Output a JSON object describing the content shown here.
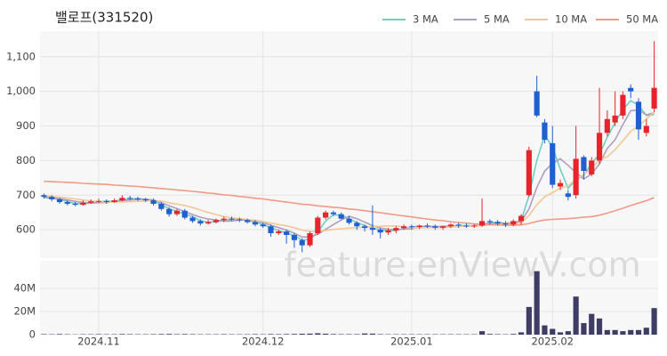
{
  "chart_data": {
    "type": "candlestick",
    "title": "밸로프(331520)",
    "watermark": "feature.enViewV.com",
    "up_color": "#e8232c",
    "down_color": "#1f5fd0",
    "grid": true,
    "legend": "top-right",
    "categories": [
      null,
      null,
      null,
      null,
      null,
      null,
      null,
      "2024.11",
      null,
      null,
      null,
      null,
      null,
      null,
      null,
      null,
      null,
      null,
      null,
      null,
      null,
      null,
      null,
      null,
      null,
      null,
      null,
      null,
      "2024.12",
      null,
      null,
      null,
      null,
      null,
      null,
      null,
      null,
      null,
      null,
      null,
      null,
      null,
      null,
      null,
      null,
      null,
      null,
      "2025.01",
      null,
      null,
      null,
      null,
      null,
      null,
      null,
      null,
      null,
      null,
      null,
      null,
      null,
      null,
      null,
      null,
      null,
      "2025.02",
      null,
      null,
      null,
      null,
      null,
      null,
      null,
      null,
      null,
      null,
      null,
      null,
      null
    ],
    "open": [
      700,
      695,
      688,
      680,
      675,
      672,
      678,
      682,
      683,
      680,
      685,
      692,
      690,
      688,
      685,
      675,
      660,
      645,
      655,
      635,
      625,
      618,
      622,
      628,
      632,
      630,
      628,
      622,
      615,
      610,
      590,
      595,
      585,
      570,
      555,
      590,
      635,
      650,
      645,
      632,
      620,
      610,
      605,
      600,
      592,
      598,
      605,
      610,
      608,
      612,
      610,
      606,
      610,
      615,
      612,
      610,
      612,
      625,
      622,
      618,
      615,
      625,
      700,
      1000,
      910,
      850,
      725,
      705,
      700,
      810,
      760,
      800,
      880,
      910,
      930,
      1010,
      970,
      880,
      950
    ],
    "high": [
      705,
      700,
      692,
      685,
      680,
      685,
      688,
      690,
      688,
      690,
      700,
      698,
      695,
      692,
      690,
      680,
      665,
      660,
      660,
      640,
      630,
      628,
      632,
      638,
      638,
      635,
      632,
      628,
      620,
      615,
      600,
      600,
      590,
      575,
      595,
      640,
      655,
      655,
      650,
      640,
      625,
      615,
      670,
      605,
      605,
      610,
      615,
      615,
      615,
      618,
      615,
      612,
      618,
      620,
      618,
      616,
      690,
      630,
      628,
      625,
      630,
      645,
      840,
      1045,
      920,
      900,
      745,
      715,
      900,
      815,
      810,
      1010,
      945,
      1000,
      1000,
      1020,
      980,
      920,
      1145
    ],
    "low": [
      690,
      682,
      675,
      670,
      668,
      670,
      675,
      678,
      675,
      678,
      682,
      685,
      683,
      680,
      670,
      655,
      638,
      640,
      630,
      620,
      612,
      615,
      618,
      622,
      625,
      622,
      618,
      610,
      605,
      580,
      585,
      560,
      548,
      535,
      550,
      585,
      630,
      640,
      630,
      615,
      600,
      595,
      585,
      575,
      585,
      590,
      600,
      600,
      602,
      605,
      600,
      600,
      605,
      605,
      605,
      605,
      608,
      615,
      612,
      608,
      610,
      615,
      695,
      925,
      850,
      720,
      715,
      685,
      690,
      745,
      755,
      790,
      870,
      900,
      920,
      980,
      860,
      870,
      940
    ],
    "close": [
      695,
      688,
      680,
      675,
      672,
      678,
      682,
      683,
      680,
      685,
      692,
      690,
      688,
      685,
      675,
      660,
      645,
      655,
      635,
      625,
      618,
      622,
      628,
      632,
      630,
      628,
      622,
      615,
      610,
      590,
      595,
      585,
      570,
      555,
      590,
      635,
      650,
      645,
      632,
      620,
      610,
      605,
      600,
      592,
      598,
      605,
      610,
      608,
      612,
      610,
      606,
      610,
      615,
      612,
      610,
      612,
      625,
      622,
      618,
      615,
      625,
      640,
      830,
      930,
      860,
      730,
      735,
      695,
      805,
      770,
      800,
      880,
      920,
      930,
      990,
      1000,
      890,
      900,
      1010
    ],
    "ylim": [
      518,
      1174
    ],
    "yticks": [
      600,
      700,
      800,
      900,
      {
        "value": 1000,
        "label": "1,000"
      },
      {
        "value": 1100,
        "label": "1,100"
      }
    ],
    "series": [
      {
        "name": "3 MA",
        "color": "#6fcfc6",
        "values": [
          693,
          690,
          688,
          681,
          676,
          675,
          677,
          681,
          682,
          683,
          686,
          689,
          690,
          688,
          683,
          673,
          660,
          653,
          645,
          638,
          626,
          622,
          623,
          627,
          630,
          630,
          627,
          622,
          616,
          605,
          598,
          590,
          583,
          570,
          572,
          593,
          625,
          643,
          642,
          632,
          621,
          612,
          605,
          599,
          597,
          598,
          604,
          608,
          610,
          610,
          609,
          609,
          610,
          612,
          612,
          611,
          616,
          620,
          622,
          618,
          619,
          627,
          698,
          800,
          873,
          840,
          775,
          720,
          745,
          757,
          792,
          818,
          867,
          910,
          947,
          973,
          960,
          930,
          933
        ]
      },
      {
        "name": "5 MA",
        "color": "#b39cc0",
        "values": [
          695,
          692,
          690,
          686,
          682,
          679,
          677,
          678,
          679,
          682,
          684,
          686,
          688,
          688,
          686,
          678,
          669,
          661,
          652,
          644,
          636,
          631,
          628,
          625,
          625,
          628,
          628,
          625,
          621,
          613,
          606,
          599,
          590,
          579,
          579,
          587,
          601,
          615,
          628,
          639,
          632,
          622,
          612,
          605,
          601,
          600,
          602,
          603,
          607,
          609,
          609,
          609,
          611,
          611,
          611,
          612,
          615,
          617,
          619,
          618,
          621,
          624,
          660,
          722,
          769,
          792,
          805,
          786,
          765,
          747,
          761,
          790,
          835,
          860,
          904,
          944,
          946,
          932,
          938
        ]
      },
      {
        "name": "10 MA",
        "color": "#f2c894",
        "values": [
          698,
          696,
          694,
          692,
          689,
          686,
          683,
          681,
          680,
          680,
          680,
          681,
          682,
          683,
          684,
          683,
          678,
          674,
          670,
          664,
          657,
          650,
          644,
          638,
          634,
          632,
          630,
          627,
          624,
          619,
          615,
          611,
          606,
          599,
          595,
          596,
          598,
          601,
          603,
          605,
          606,
          608,
          609,
          610,
          611,
          611,
          608,
          605,
          606,
          606,
          606,
          606,
          608,
          609,
          611,
          611,
          613,
          614,
          615,
          616,
          617,
          620,
          641,
          672,
          695,
          707,
          720,
          727,
          745,
          760,
          777,
          802,
          811,
          831,
          857,
          884,
          900,
          920,
          940
        ]
      },
      {
        "name": "50 MA",
        "color": "#f29a86",
        "values": [
          740,
          739,
          738,
          737,
          736,
          734,
          733,
          732,
          731,
          729,
          728,
          726,
          725,
          723,
          721,
          719,
          717,
          715,
          713,
          711,
          709,
          706,
          704,
          701,
          699,
          696,
          694,
          691,
          689,
          686,
          683,
          680,
          677,
          674,
          672,
          669,
          667,
          665,
          663,
          660,
          658,
          655,
          652,
          649,
          646,
          643,
          640,
          637,
          634,
          631,
          628,
          626,
          623,
          621,
          619,
          617,
          616,
          615,
          614,
          613,
          613,
          614,
          618,
          624,
          628,
          630,
          631,
          632,
          634,
          636,
          638,
          642,
          648,
          655,
          662,
          670,
          677,
          684,
          693
        ]
      }
    ],
    "volume": {
      "color": "#3d3d66",
      "ylim": [
        0,
        64
      ],
      "yticks": [
        0,
        {
          "value": 20,
          "label": "20M"
        },
        {
          "value": 40,
          "label": "40M"
        }
      ],
      "values": [
        0.4,
        0.3,
        0.5,
        0.3,
        0.2,
        0.3,
        0.3,
        0.4,
        0.3,
        0.3,
        0.5,
        0.4,
        0.3,
        0.3,
        0.4,
        0.5,
        0.6,
        0.4,
        0.5,
        0.4,
        0.3,
        0.3,
        0.3,
        0.4,
        0.3,
        0.3,
        0.3,
        0.4,
        0.3,
        0.5,
        0.4,
        0.5,
        0.6,
        0.8,
        0.9,
        1.2,
        0.8,
        0.5,
        0.4,
        0.4,
        0.4,
        1,
        0.9,
        0.4,
        0.3,
        0.3,
        0.3,
        0.3,
        0.3,
        0.3,
        0.3,
        0.3,
        0.3,
        0.3,
        0.3,
        0.3,
        3,
        0.6,
        0.4,
        0.3,
        0.6,
        2,
        24,
        55,
        8,
        5,
        2,
        3,
        33,
        10,
        18,
        14,
        4,
        4,
        3,
        4,
        4,
        6,
        23
      ]
    }
  }
}
